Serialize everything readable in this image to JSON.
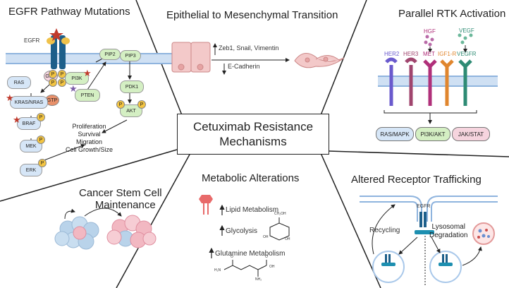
{
  "center": {
    "line1": "Cetuximab Resistance",
    "line2": "Mechanisms"
  },
  "egfr": {
    "title": "EGFR Pathway Mutations",
    "receptor": "EGFR",
    "pip2": "PIP2",
    "pip3": "PIP3",
    "gdp": "GDP",
    "gtp": "GTP",
    "ras": "RAS",
    "pi3k": "PI3K",
    "pten": "PTEN",
    "pdk1": "PDK1",
    "akt": "AKT",
    "kras": "KRAS/NRAS",
    "braf": "BRAF",
    "mek": "MEK",
    "erk": "ERK",
    "p": "P",
    "outcomes": [
      "Proliferation",
      "Survival",
      "Migration",
      "Cell Growth/Size"
    ]
  },
  "emt": {
    "title": "Epithelial to Mesenchymal Transition",
    "up": "Zeb1, Snail, Vimentin",
    "down": "E-Cadherin"
  },
  "rtk": {
    "title": "Parallel RTK Activation",
    "ligands": {
      "hgf": "HGF",
      "vegf": "VEGF"
    },
    "receptors": [
      {
        "name": "HER2",
        "color": "#6a5acd"
      },
      {
        "name": "HER3",
        "color": "#a0456e"
      },
      {
        "name": "MET",
        "color": "#b0307a"
      },
      {
        "name": "IGF1-R",
        "color": "#e0862e"
      },
      {
        "name": "VEGFR",
        "color": "#2e8b74"
      }
    ],
    "pathways": [
      "RAS/MAPK",
      "PI3K/AKT",
      "JAK/STAT"
    ]
  },
  "stem": {
    "title_line1": "Cancer Stem Cell",
    "title_line2": "Maintenance"
  },
  "metabolic": {
    "title": "Metabolic Alterations",
    "items": [
      "Lipid Metabolism",
      "Glycolysis",
      "Glutamine Metabolism"
    ],
    "glycolysis_struct": {
      "ch2oh": "CH₂OH",
      "oh": "OH"
    },
    "glutamine_struct": {
      "h2n": "H₂N",
      "o": "O",
      "oh": "OH",
      "nh2": "NH₂"
    }
  },
  "trafficking": {
    "title": "Altered Receptor Trafficking",
    "receptor": "EGFR",
    "recycling": "Recycling",
    "degradation_line1": "Lysosomal",
    "degradation_line2": "Degradation"
  },
  "colors": {
    "membrane": "#a9c8ea",
    "receptor": "#1d5f8a",
    "mutation_star": "#c0392b",
    "phospho": "#f4c542",
    "green_node": "#d4efc3",
    "blue_node": "#d6e6f7",
    "pink_node": "#f6d4de",
    "pink_cell": "#f3c9c9",
    "lysosome": "#f2b8b8"
  }
}
